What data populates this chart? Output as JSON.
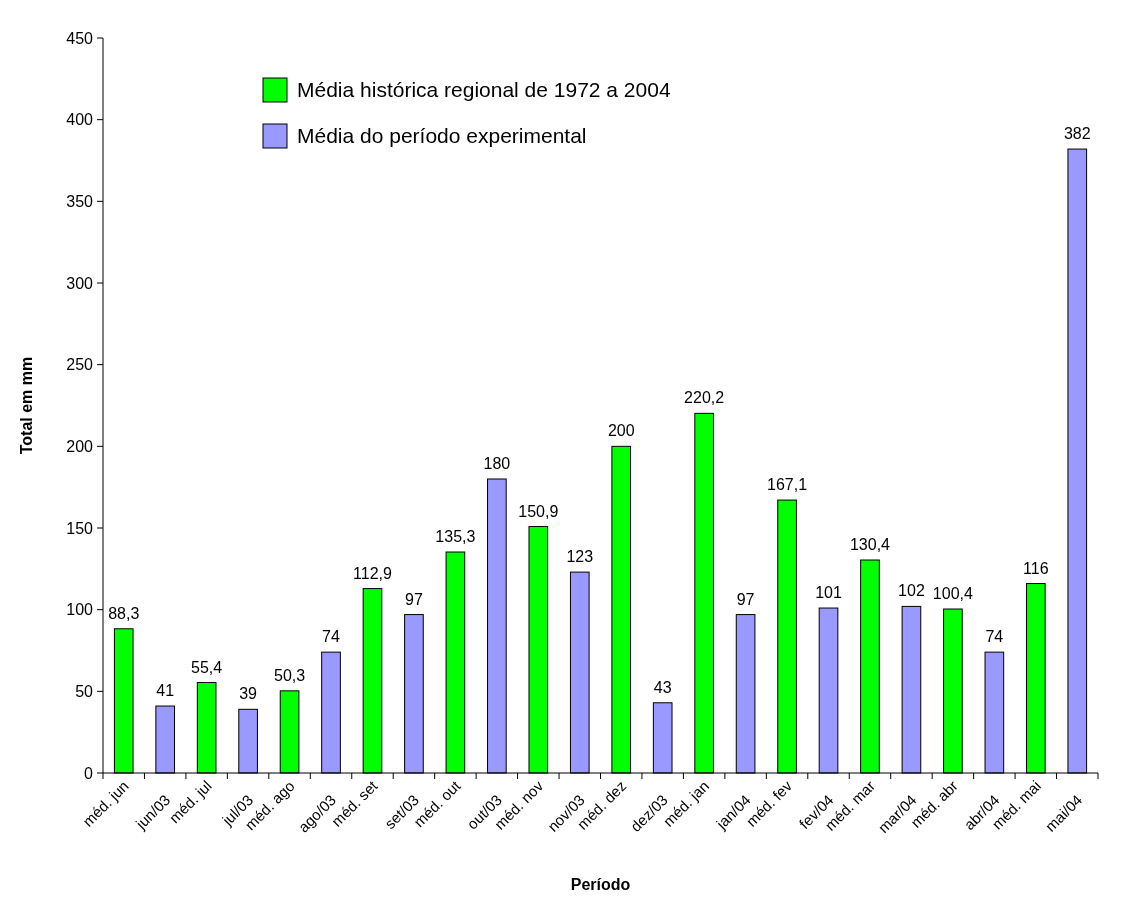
{
  "chart_data": {
    "type": "bar",
    "xlabel": "Período",
    "ylabel": "Total em mm",
    "categories": [
      "méd. jun",
      "jun/03",
      "méd. jul",
      "jul/03",
      "méd. ago",
      "ago/03",
      "méd. set",
      "set/03",
      "méd. out",
      "out/03",
      "méd. nov",
      "nov/03",
      "méd. dez",
      "dez/03",
      "méd. jan",
      "jan/04",
      "méd. fev",
      "fev/04",
      "méd. mar",
      "mar/04",
      "méd. abr",
      "abr/04",
      "méd. mai",
      "mai/04"
    ],
    "series": [
      {
        "name": "Média histórica regional de 1972 a 2004",
        "color": "#00ff00",
        "values": [
          88.3,
          null,
          55.4,
          null,
          50.3,
          null,
          112.9,
          null,
          135.3,
          null,
          150.9,
          null,
          200,
          null,
          220.2,
          null,
          167.1,
          null,
          130.4,
          null,
          100.4,
          null,
          116,
          null
        ],
        "value_labels": [
          "88,3",
          null,
          "55,4",
          null,
          "50,3",
          null,
          "112,9",
          null,
          "135,3",
          null,
          "150,9",
          null,
          "200",
          null,
          "220,2",
          null,
          "167,1",
          null,
          "130,4",
          null,
          "100,4",
          null,
          "116",
          null
        ]
      },
      {
        "name": "Média do período experimental",
        "color": "#9999ff",
        "values": [
          null,
          41,
          null,
          39,
          null,
          74,
          null,
          97,
          null,
          180,
          null,
          123,
          null,
          43,
          null,
          97,
          null,
          101,
          null,
          102,
          null,
          74,
          null,
          382
        ],
        "value_labels": [
          null,
          "41",
          null,
          "39",
          null,
          "74",
          null,
          "97",
          null,
          "180",
          null,
          "123",
          null,
          "43",
          null,
          "97",
          null,
          "101",
          null,
          "102",
          null,
          "74",
          null,
          "382"
        ]
      }
    ],
    "ylim": [
      0,
      450
    ],
    "yticks": [
      0,
      50,
      100,
      150,
      200,
      250,
      300,
      350,
      400,
      450
    ],
    "legend": "top left",
    "grid": false
  }
}
